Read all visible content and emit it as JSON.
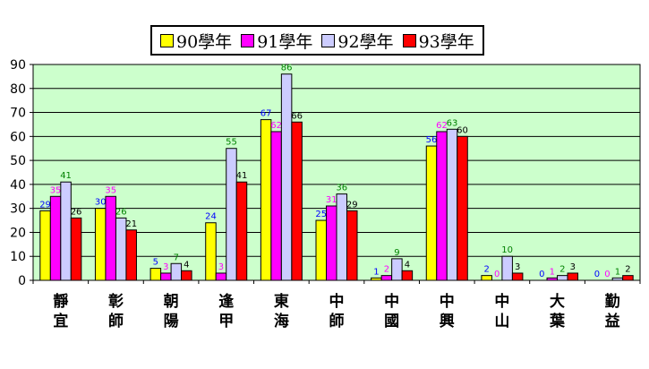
{
  "chart_data": {
    "type": "bar",
    "categories": [
      [
        "靜",
        "宜"
      ],
      [
        "彰",
        "師"
      ],
      [
        "朝",
        "陽"
      ],
      [
        "逢",
        "甲"
      ],
      [
        "東",
        "海"
      ],
      [
        "中",
        "師"
      ],
      [
        "中",
        "國"
      ],
      [
        "中",
        "興"
      ],
      [
        "中",
        "山"
      ],
      [
        "大",
        "葉"
      ],
      [
        "勤",
        "益"
      ]
    ],
    "series": [
      {
        "name": "90學年",
        "color": "#ffff00",
        "label_color": "#0000ff",
        "values": [
          29,
          30,
          5,
          24,
          67,
          25,
          1,
          56,
          2,
          0,
          0
        ]
      },
      {
        "name": "91學年",
        "color": "#ff00ff",
        "label_color": "#ff00ff",
        "values": [
          35,
          35,
          3,
          3,
          62,
          31,
          2,
          62,
          0,
          1,
          0
        ]
      },
      {
        "name": "92學年",
        "color": "#ccccff",
        "label_color": "#008000",
        "values": [
          41,
          26,
          7,
          55,
          86,
          36,
          9,
          63,
          10,
          2,
          1
        ]
      },
      {
        "name": "93學年",
        "color": "#ff0000",
        "label_color": "#000000",
        "values": [
          26,
          21,
          4,
          41,
          66,
          29,
          4,
          60,
          3,
          3,
          2
        ]
      }
    ],
    "y_ticks": [
      0,
      10,
      20,
      30,
      40,
      50,
      60,
      70,
      80,
      90
    ],
    "ylim": [
      0,
      90
    ],
    "grid": true,
    "plot_background": "#ccffcc",
    "legend_position": "top-center"
  }
}
